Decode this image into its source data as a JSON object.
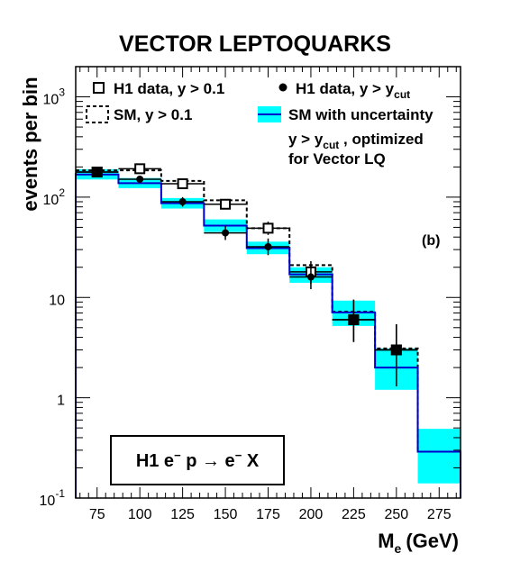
{
  "chart_data": {
    "type": "step-histogram",
    "title": "VECTOR LEPTOQUARKS",
    "ylabel": "events per bin",
    "xlabel": "M",
    "xlabel_sub": "e",
    "xlabel_unit": "(GeV)",
    "panel_label": "(b)",
    "y_scale": "log",
    "xlim": [
      62.5,
      287.5
    ],
    "ylim": [
      0.1,
      2000
    ],
    "bin_edges": [
      62.5,
      87.5,
      112.5,
      137.5,
      162.5,
      187.5,
      212.5,
      237.5,
      262.5,
      287.5
    ],
    "x_ticks": [
      75,
      100,
      125,
      150,
      175,
      200,
      225,
      250,
      275
    ],
    "y_ticks": [
      {
        "value": 0.1,
        "base": "10",
        "exp": "-1"
      },
      {
        "value": 1,
        "base": "1",
        "exp": ""
      },
      {
        "value": 10,
        "base": "10",
        "exp": ""
      },
      {
        "value": 100,
        "base": "10",
        "exp": "2"
      },
      {
        "value": 1000,
        "base": "10",
        "exp": "3"
      }
    ],
    "legend": {
      "h1_loose": {
        "main": "H1 data, y > 0.1"
      },
      "h1_cut": {
        "main": "H1 data, y > y",
        "sub": "cut"
      },
      "sm_loose": {
        "main": "SM, y > 0.1"
      },
      "sm_band": {
        "line1": "SM with uncertainty",
        "line2_main": "y > y",
        "line2_sub": "cut",
        "line2_tail": " , optimized",
        "line3": "for Vector LQ"
      }
    },
    "reaction": {
      "p1": "H1 e",
      "s1": "−",
      "p2": " p ",
      "arrow": "→",
      "p3": " e",
      "s2": "−",
      "p4": " X"
    },
    "series": [
      {
        "name": "SM, y > 0.1",
        "style": "dashed-step",
        "values": [
          185,
          185,
          145,
          93,
          49,
          21,
          7.2,
          3.1,
          0.29
        ]
      },
      {
        "name": "SM with uncertainty",
        "style": "band-step",
        "color": "#00FFFF",
        "line_color": "#0000CC",
        "values": [
          168,
          138,
          87,
          52,
          31,
          17,
          7.1,
          2.0,
          0.29
        ],
        "band_low": [
          150,
          123,
          77,
          45,
          27,
          14,
          5.2,
          1.2,
          0.14
        ],
        "band_high": [
          190,
          155,
          98,
          60,
          36,
          20,
          9.3,
          3.1,
          0.49
        ]
      },
      {
        "name": "H1 data, y > 0.1",
        "style": "open-square",
        "x": [
          75,
          100,
          125,
          150,
          175,
          200,
          225,
          250
        ],
        "y": [
          178,
          192,
          136,
          85,
          49,
          18,
          6,
          3
        ],
        "err_low": [
          13,
          14,
          12,
          9,
          7,
          4.3,
          2.4,
          1.7
        ],
        "err_high": [
          14,
          15,
          12,
          10,
          8,
          5,
          3.5,
          2.4
        ]
      },
      {
        "name": "H1 data, y > y_cut",
        "style": "filled-circle",
        "x": [
          75,
          100,
          125,
          150,
          175,
          200,
          225,
          250
        ],
        "y": [
          178,
          151,
          90,
          44,
          32,
          16,
          6,
          3
        ],
        "err_low": [
          13,
          12,
          9.5,
          6.6,
          5.6,
          3.9,
          2.4,
          1.7
        ],
        "err_high": [
          14,
          13,
          10,
          7.7,
          6.7,
          4.8,
          3.5,
          2.4
        ]
      }
    ]
  }
}
